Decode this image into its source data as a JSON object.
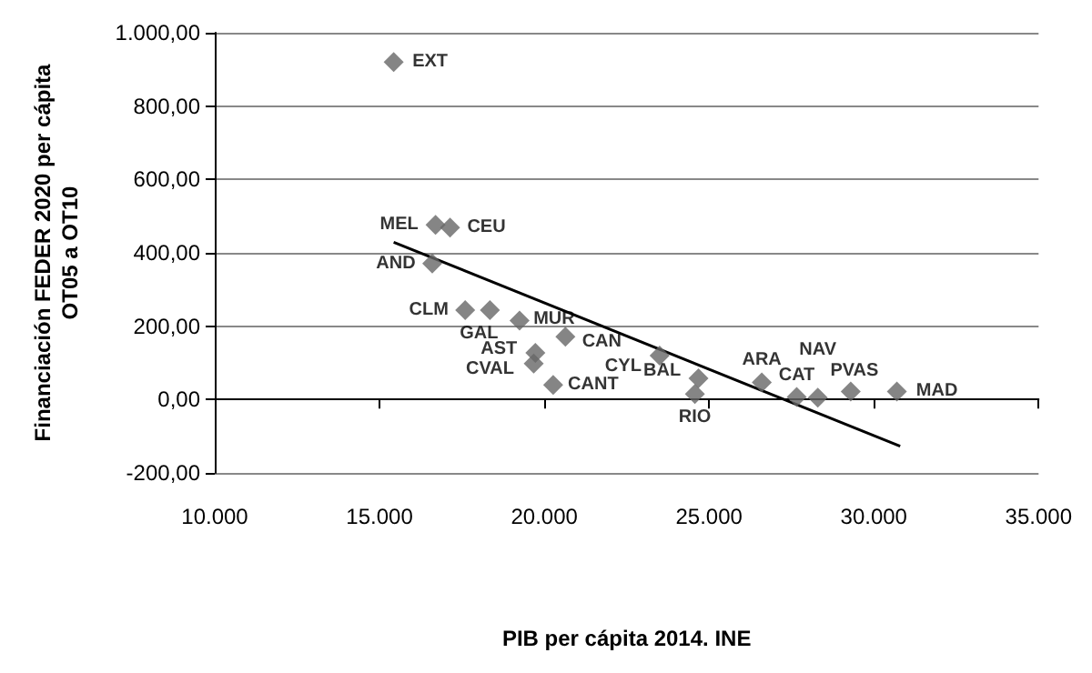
{
  "chart_data": {
    "type": "scatter",
    "xlabel": "PIB per cápita 2014. INE",
    "ylabel": "Financiación FEDER 2020 per cápita\nOT05 a OT10",
    "xlim": [
      10000,
      35000
    ],
    "xticks": [
      {
        "value": 10000,
        "label": "10.000"
      },
      {
        "value": 15000,
        "label": "15.000"
      },
      {
        "value": 20000,
        "label": "20.000"
      },
      {
        "value": 25000,
        "label": "25.000"
      },
      {
        "value": 30000,
        "label": "30.000"
      },
      {
        "value": 35000,
        "label": "35.000"
      }
    ],
    "ylim": [
      -200,
      1000
    ],
    "yticks": [
      {
        "value": -200,
        "label": "-200,00"
      },
      {
        "value": 0,
        "label": "0,00"
      },
      {
        "value": 200,
        "label": "200,00"
      },
      {
        "value": 400,
        "label": "400,00"
      },
      {
        "value": 600,
        "label": "600,00"
      },
      {
        "value": 800,
        "label": "800,00"
      },
      {
        "value": 1000,
        "label": "1.000,00"
      }
    ],
    "grid": "y",
    "marker": "diamond",
    "series": [
      {
        "color": "#666666",
        "x": [
          15430,
          16700,
          17140,
          16600,
          17600,
          18350,
          19250,
          20640,
          19730,
          19680,
          20270,
          23500,
          24680,
          24570,
          26600,
          27660,
          28300,
          29300,
          30700
        ],
        "values": [
          920,
          476,
          469,
          371,
          244,
          244,
          215,
          171,
          127,
          98,
          40,
          120,
          58,
          15,
          47,
          7,
          5,
          22,
          22
        ]
      },
      {
        "type": "line",
        "marker": "none",
        "color": "#000000",
        "x": [
          15430,
          30800
        ],
        "values": [
          429,
          -127
        ]
      }
    ],
    "annotations": [
      {
        "text": "EXT",
        "x": 15430,
        "y": 920
      },
      {
        "text": "MEL",
        "x": 16700,
        "y": 476
      },
      {
        "text": "CEU",
        "x": 17140,
        "y": 469
      },
      {
        "text": "AND",
        "x": 16600,
        "y": 371
      },
      {
        "text": "CLM",
        "x": 17600,
        "y": 244
      },
      {
        "text": "GAL",
        "x": 18350,
        "y": 244
      },
      {
        "text": "MUR",
        "x": 19250,
        "y": 215
      },
      {
        "text": "CAN",
        "x": 20640,
        "y": 171
      },
      {
        "text": "AST",
        "x": 19730,
        "y": 127
      },
      {
        "text": "CVAL",
        "x": 19680,
        "y": 98
      },
      {
        "text": "CANT",
        "x": 20270,
        "y": 40
      },
      {
        "text": "CYL",
        "x": 23500,
        "y": 120
      },
      {
        "text": "BAL",
        "x": 24680,
        "y": 58
      },
      {
        "text": "RIO",
        "x": 24570,
        "y": 15
      },
      {
        "text": "ARA",
        "x": 26600,
        "y": 47
      },
      {
        "text": "CAT",
        "x": 27660,
        "y": 7
      },
      {
        "text": "NAV",
        "x": 28300,
        "y": 5
      },
      {
        "text": "PVAS",
        "x": 29300,
        "y": 22
      },
      {
        "text": "MAD",
        "x": 30700,
        "y": 22
      }
    ]
  }
}
